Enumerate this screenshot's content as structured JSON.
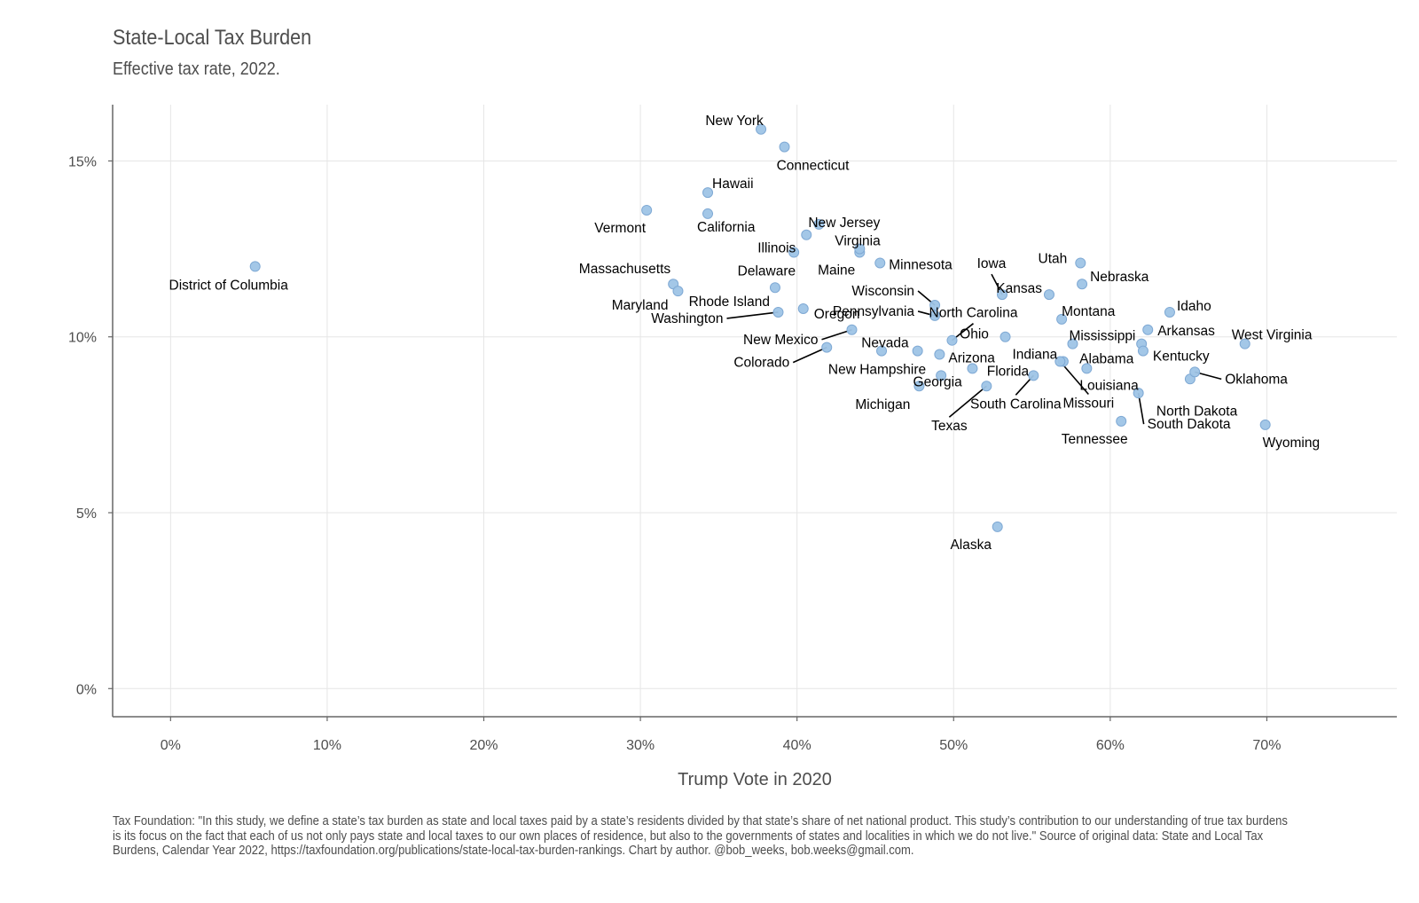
{
  "chart_data": {
    "type": "scatter",
    "title": "State-Local Tax Burden",
    "subtitle": "Effective tax rate, 2022.",
    "xlabel": "Trump Vote in 2020",
    "ylabel": "",
    "xlim": [
      -3.7,
      78.3
    ],
    "ylim": [
      -0.8,
      16.6
    ],
    "x_ticks": [
      0,
      10,
      20,
      30,
      40,
      50,
      60,
      70
    ],
    "x_tick_labels": [
      "0%",
      "10%",
      "20%",
      "30%",
      "40%",
      "50%",
      "60%",
      "70%"
    ],
    "y_ticks": [
      0,
      5,
      10,
      15
    ],
    "y_tick_labels": [
      "0%",
      "5%",
      "10%",
      "15%"
    ],
    "grid": true,
    "legend": "none",
    "point_color": "#9ec4e6",
    "point_stroke": "#7fa9d4",
    "points": [
      {
        "name": "District of Columbia",
        "x": 5.4,
        "y": 12.0
      },
      {
        "name": "Vermont",
        "x": 30.4,
        "y": 13.6
      },
      {
        "name": "Massachusetts",
        "x": 32.1,
        "y": 11.5
      },
      {
        "name": "Maryland",
        "x": 32.4,
        "y": 11.3
      },
      {
        "name": "Hawaii",
        "x": 34.3,
        "y": 14.1
      },
      {
        "name": "California",
        "x": 34.3,
        "y": 13.5
      },
      {
        "name": "New York",
        "x": 37.7,
        "y": 15.9
      },
      {
        "name": "Washington",
        "x": 38.8,
        "y": 10.7
      },
      {
        "name": "Rhode Island",
        "x": 38.6,
        "y": 11.4
      },
      {
        "name": "Connecticut",
        "x": 39.2,
        "y": 15.4
      },
      {
        "name": "Delaware",
        "x": 39.8,
        "y": 12.4
      },
      {
        "name": "Oregon",
        "x": 40.4,
        "y": 10.8
      },
      {
        "name": "Illinois",
        "x": 40.6,
        "y": 12.9
      },
      {
        "name": "New Jersey",
        "x": 41.4,
        "y": 13.2
      },
      {
        "name": "Colorado",
        "x": 41.9,
        "y": 9.7
      },
      {
        "name": "New Mexico",
        "x": 43.5,
        "y": 10.2
      },
      {
        "name": "Maine",
        "x": 44.0,
        "y": 12.4
      },
      {
        "name": "Virginia",
        "x": 44.0,
        "y": 12.5
      },
      {
        "name": "Minnesota",
        "x": 45.3,
        "y": 12.1
      },
      {
        "name": "New Hampshire",
        "x": 45.4,
        "y": 9.6
      },
      {
        "name": "Michigan",
        "x": 47.8,
        "y": 8.6
      },
      {
        "name": "Nevada",
        "x": 47.7,
        "y": 9.6
      },
      {
        "name": "Wisconsin",
        "x": 48.8,
        "y": 10.9
      },
      {
        "name": "Pennsylvania",
        "x": 48.8,
        "y": 10.6
      },
      {
        "name": "Arizona",
        "x": 49.1,
        "y": 9.5
      },
      {
        "name": "Georgia",
        "x": 49.2,
        "y": 8.9
      },
      {
        "name": "North Carolina",
        "x": 49.9,
        "y": 9.9
      },
      {
        "name": "Florida",
        "x": 51.2,
        "y": 9.1
      },
      {
        "name": "Texas",
        "x": 52.1,
        "y": 8.6
      },
      {
        "name": "Iowa",
        "x": 53.1,
        "y": 11.2
      },
      {
        "name": "Alaska",
        "x": 52.8,
        "y": 4.6
      },
      {
        "name": "Ohio",
        "x": 53.3,
        "y": 10.0
      },
      {
        "name": "South Carolina",
        "x": 55.1,
        "y": 8.9
      },
      {
        "name": "Kansas",
        "x": 56.1,
        "y": 11.2
      },
      {
        "name": "Montana",
        "x": 56.9,
        "y": 10.5
      },
      {
        "name": "Indiana",
        "x": 57.0,
        "y": 9.3
      },
      {
        "name": "Missouri",
        "x": 56.8,
        "y": 9.3
      },
      {
        "name": "Mississippi",
        "x": 57.6,
        "y": 9.8
      },
      {
        "name": "Utah",
        "x": 58.1,
        "y": 12.1
      },
      {
        "name": "Nebraska",
        "x": 58.2,
        "y": 11.5
      },
      {
        "name": "Louisiana",
        "x": 58.5,
        "y": 9.1
      },
      {
        "name": "Alabama",
        "x": 62.0,
        "y": 9.8
      },
      {
        "name": "Tennessee",
        "x": 60.7,
        "y": 7.6
      },
      {
        "name": "South Dakota",
        "x": 61.8,
        "y": 8.4
      },
      {
        "name": "Kentucky",
        "x": 62.1,
        "y": 9.6
      },
      {
        "name": "Arkansas",
        "x": 62.4,
        "y": 10.2
      },
      {
        "name": "Idaho",
        "x": 63.8,
        "y": 10.7
      },
      {
        "name": "North Dakota",
        "x": 65.1,
        "y": 8.8
      },
      {
        "name": "Oklahoma",
        "x": 65.4,
        "y": 9.0
      },
      {
        "name": "West Virginia",
        "x": 68.6,
        "y": 9.8
      },
      {
        "name": "Wyoming",
        "x": 69.9,
        "y": 7.5
      }
    ]
  },
  "caption": "Tax Foundation: \"In this study, we define a state’s tax burden as state and local taxes paid by a state’s residents divided by that state’s share of net national product. This study’s contribution to our understanding of true tax burdens is its focus on the fact that each of us not only pays state and local taxes to our own places of residence, but also to the governments of states and localities in which we do not live.\" Source of original data: State and Local Tax Burdens, Calendar Year 2022, https://taxfoundation.org/publications/state-local-tax-burden-rankings. Chart by author. @bob_weeks, bob.weeks@gmail.com."
}
